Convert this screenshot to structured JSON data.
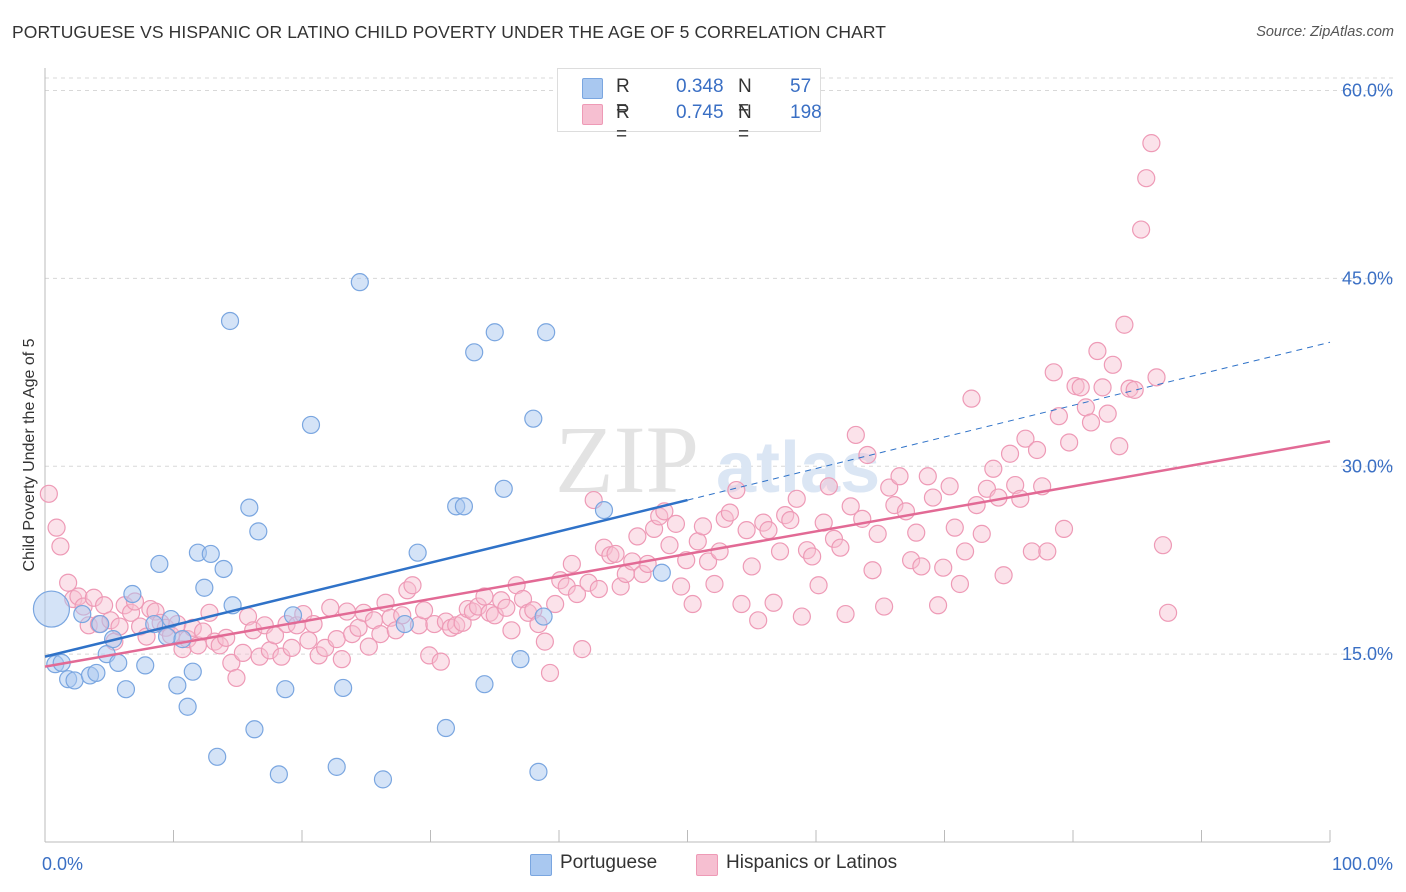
{
  "header": {
    "title": "PORTUGUESE VS HISPANIC OR LATINO CHILD POVERTY UNDER THE AGE OF 5 CORRELATION CHART",
    "source": "Source: ZipAtlas.com"
  },
  "watermark": {
    "zip": "ZIP",
    "atlas": "atlas"
  },
  "legend": {
    "portuguese": {
      "r_label": "R =",
      "r_value": "0.348",
      "n_label": "N =",
      "n_value": "57"
    },
    "hispanic": {
      "r_label": "R =",
      "r_value": "0.745",
      "n_label": "N =",
      "n_value": "198"
    }
  },
  "bottom_legend": {
    "portuguese": "Portuguese",
    "hispanic": "Hispanics or Latinos"
  },
  "colors": {
    "portuguese_fill": "#a9c8f0",
    "portuguese_stroke": "#7aa6e0",
    "portuguese_line": "#2f72c8",
    "hispanic_fill": "#f6bfd1",
    "hispanic_stroke": "#ee9ab6",
    "hispanic_line": "#e26a95",
    "axis_text": "#3a6fc4",
    "grid": "#d8d8d8"
  },
  "chart_data": {
    "type": "scatter",
    "title": "PORTUGUESE VS HISPANIC OR LATINO CHILD POVERTY UNDER THE AGE OF 5 CORRELATION CHART",
    "xlabel": "",
    "ylabel": "Child Poverty Under the Age of 5",
    "xlim": [
      0,
      100
    ],
    "ylim": [
      0,
      61
    ],
    "x_tick_labels": [
      "0.0%",
      "100.0%"
    ],
    "y_ticks": [
      15,
      30,
      45,
      60
    ],
    "y_tick_labels": [
      "15.0%",
      "30.0%",
      "45.0%",
      "60.0%"
    ],
    "grid": "horizontal dashed",
    "legend_position": "top-center",
    "series": [
      {
        "name": "Portuguese",
        "r": 0.348,
        "n": 57,
        "trend": {
          "x0": 0,
          "y0": 14.8,
          "x1": 50,
          "y1": 27.3,
          "dashed_to_x": 100,
          "dashed_to_y": 39.9
        },
        "points": [
          [
            0.5,
            18.6
          ],
          [
            0.8,
            14.2
          ],
          [
            1.3,
            14.3
          ],
          [
            1.8,
            13.0
          ],
          [
            2.3,
            12.9
          ],
          [
            2.9,
            18.2
          ],
          [
            3.5,
            13.3
          ],
          [
            4.0,
            13.5
          ],
          [
            4.3,
            17.4
          ],
          [
            4.8,
            15.0
          ],
          [
            5.3,
            16.2
          ],
          [
            5.7,
            14.3
          ],
          [
            6.3,
            12.2
          ],
          [
            6.8,
            19.8
          ],
          [
            7.8,
            14.1
          ],
          [
            8.5,
            17.4
          ],
          [
            8.9,
            22.2
          ],
          [
            9.5,
            16.4
          ],
          [
            9.8,
            17.8
          ],
          [
            10.3,
            12.5
          ],
          [
            10.7,
            16.2
          ],
          [
            11.1,
            10.8
          ],
          [
            11.5,
            13.6
          ],
          [
            11.9,
            23.1
          ],
          [
            12.4,
            20.3
          ],
          [
            12.9,
            23.0
          ],
          [
            13.4,
            6.8
          ],
          [
            13.9,
            21.8
          ],
          [
            14.4,
            41.6
          ],
          [
            14.6,
            18.9
          ],
          [
            15.9,
            26.7
          ],
          [
            16.3,
            9.0
          ],
          [
            16.6,
            24.8
          ],
          [
            18.2,
            5.4
          ],
          [
            18.7,
            12.2
          ],
          [
            19.3,
            18.1
          ],
          [
            20.7,
            33.3
          ],
          [
            22.7,
            6.0
          ],
          [
            23.2,
            12.3
          ],
          [
            24.5,
            44.7
          ],
          [
            26.3,
            5.0
          ],
          [
            28.0,
            17.4
          ],
          [
            29.0,
            23.1
          ],
          [
            31.2,
            9.1
          ],
          [
            32.0,
            26.8
          ],
          [
            32.6,
            26.8
          ],
          [
            33.4,
            39.1
          ],
          [
            34.2,
            12.6
          ],
          [
            35.0,
            40.7
          ],
          [
            35.7,
            28.2
          ],
          [
            37.0,
            14.6
          ],
          [
            38.0,
            33.8
          ],
          [
            38.4,
            5.6
          ],
          [
            38.8,
            18.0
          ],
          [
            39.0,
            40.7
          ],
          [
            43.5,
            26.5
          ],
          [
            48.0,
            21.5
          ]
        ]
      },
      {
        "name": "Hispanics or Latinos",
        "r": 0.745,
        "n": 198,
        "trend": {
          "x0": 0,
          "y0": 14.0,
          "x1": 100,
          "y1": 32.0
        },
        "points": [
          [
            0.3,
            27.8
          ],
          [
            0.9,
            25.1
          ],
          [
            1.2,
            23.6
          ],
          [
            1.8,
            20.7
          ],
          [
            2.2,
            19.4
          ],
          [
            2.6,
            19.6
          ],
          [
            3.0,
            18.8
          ],
          [
            3.4,
            17.3
          ],
          [
            3.8,
            19.5
          ],
          [
            4.2,
            17.4
          ],
          [
            4.6,
            18.9
          ],
          [
            5.1,
            17.7
          ],
          [
            5.4,
            16.0
          ],
          [
            5.8,
            17.2
          ],
          [
            6.2,
            18.9
          ],
          [
            6.7,
            18.3
          ],
          [
            7.0,
            19.2
          ],
          [
            7.4,
            17.2
          ],
          [
            7.9,
            16.4
          ],
          [
            8.2,
            18.6
          ],
          [
            8.6,
            18.4
          ],
          [
            9.0,
            17.5
          ],
          [
            9.4,
            17.1
          ],
          [
            9.8,
            16.5
          ],
          [
            10.3,
            17.4
          ],
          [
            10.7,
            15.4
          ],
          [
            11.1,
            16.2
          ],
          [
            11.5,
            17.1
          ],
          [
            11.9,
            15.7
          ],
          [
            12.3,
            16.8
          ],
          [
            12.8,
            18.3
          ],
          [
            13.2,
            16.0
          ],
          [
            13.6,
            15.7
          ],
          [
            14.1,
            16.3
          ],
          [
            14.5,
            14.3
          ],
          [
            14.9,
            13.1
          ],
          [
            15.4,
            15.1
          ],
          [
            15.8,
            18.0
          ],
          [
            16.2,
            16.9
          ],
          [
            16.7,
            14.8
          ],
          [
            17.1,
            17.3
          ],
          [
            17.5,
            15.3
          ],
          [
            17.9,
            16.5
          ],
          [
            18.4,
            14.8
          ],
          [
            18.8,
            17.4
          ],
          [
            19.2,
            15.5
          ],
          [
            19.6,
            17.3
          ],
          [
            20.1,
            18.2
          ],
          [
            20.5,
            16.1
          ],
          [
            20.9,
            17.4
          ],
          [
            21.3,
            14.9
          ],
          [
            21.8,
            15.5
          ],
          [
            22.2,
            18.7
          ],
          [
            22.7,
            16.2
          ],
          [
            23.1,
            14.6
          ],
          [
            23.5,
            18.4
          ],
          [
            23.9,
            16.6
          ],
          [
            24.4,
            17.1
          ],
          [
            24.8,
            18.3
          ],
          [
            25.2,
            15.6
          ],
          [
            25.6,
            17.7
          ],
          [
            26.1,
            16.6
          ],
          [
            26.5,
            19.1
          ],
          [
            26.9,
            17.9
          ],
          [
            27.3,
            16.9
          ],
          [
            27.8,
            18.1
          ],
          [
            28.2,
            20.1
          ],
          [
            28.6,
            20.5
          ],
          [
            29.1,
            17.3
          ],
          [
            29.5,
            18.5
          ],
          [
            29.9,
            14.9
          ],
          [
            30.3,
            17.4
          ],
          [
            30.8,
            14.4
          ],
          [
            31.2,
            17.6
          ],
          [
            31.6,
            17.1
          ],
          [
            32.0,
            17.3
          ],
          [
            32.5,
            17.5
          ],
          [
            32.9,
            18.6
          ],
          [
            33.3,
            18.4
          ],
          [
            33.7,
            18.8
          ],
          [
            34.2,
            19.6
          ],
          [
            34.6,
            18.3
          ],
          [
            35.0,
            18.1
          ],
          [
            35.5,
            19.3
          ],
          [
            35.9,
            18.7
          ],
          [
            36.3,
            16.9
          ],
          [
            36.7,
            20.5
          ],
          [
            37.2,
            19.4
          ],
          [
            37.6,
            18.3
          ],
          [
            38.0,
            18.5
          ],
          [
            38.4,
            17.4
          ],
          [
            38.9,
            16.0
          ],
          [
            39.3,
            13.5
          ],
          [
            39.7,
            19.0
          ],
          [
            40.1,
            20.9
          ],
          [
            40.6,
            20.4
          ],
          [
            41.0,
            22.2
          ],
          [
            41.4,
            19.8
          ],
          [
            41.8,
            15.4
          ],
          [
            42.3,
            20.7
          ],
          [
            42.7,
            27.3
          ],
          [
            43.1,
            20.2
          ],
          [
            43.5,
            23.5
          ],
          [
            44.0,
            22.9
          ],
          [
            44.4,
            23.0
          ],
          [
            44.8,
            20.4
          ],
          [
            45.2,
            21.4
          ],
          [
            45.7,
            22.4
          ],
          [
            46.1,
            24.4
          ],
          [
            46.5,
            21.4
          ],
          [
            46.9,
            22.2
          ],
          [
            47.4,
            25.0
          ],
          [
            47.8,
            26.0
          ],
          [
            48.2,
            26.4
          ],
          [
            48.6,
            23.7
          ],
          [
            49.1,
            25.4
          ],
          [
            49.5,
            20.4
          ],
          [
            49.9,
            22.5
          ],
          [
            50.4,
            19.0
          ],
          [
            50.8,
            24.0
          ],
          [
            51.2,
            25.2
          ],
          [
            51.6,
            22.4
          ],
          [
            52.1,
            20.6
          ],
          [
            52.5,
            23.2
          ],
          [
            52.9,
            25.8
          ],
          [
            53.3,
            26.3
          ],
          [
            53.8,
            28.1
          ],
          [
            54.2,
            19.0
          ],
          [
            54.6,
            24.9
          ],
          [
            55.0,
            22.0
          ],
          [
            55.5,
            17.7
          ],
          [
            55.9,
            25.5
          ],
          [
            56.3,
            24.9
          ],
          [
            56.7,
            19.1
          ],
          [
            57.2,
            23.2
          ],
          [
            57.6,
            26.1
          ],
          [
            58.0,
            25.7
          ],
          [
            58.5,
            27.4
          ],
          [
            58.9,
            18.0
          ],
          [
            59.3,
            23.3
          ],
          [
            59.7,
            22.8
          ],
          [
            60.2,
            20.5
          ],
          [
            60.6,
            25.5
          ],
          [
            61.0,
            28.4
          ],
          [
            61.4,
            24.2
          ],
          [
            61.9,
            23.5
          ],
          [
            62.3,
            18.2
          ],
          [
            62.7,
            26.8
          ],
          [
            63.1,
            32.5
          ],
          [
            63.6,
            25.8
          ],
          [
            64.0,
            30.9
          ],
          [
            64.4,
            21.7
          ],
          [
            64.8,
            24.6
          ],
          [
            65.3,
            18.8
          ],
          [
            65.7,
            28.3
          ],
          [
            66.1,
            26.9
          ],
          [
            66.5,
            29.2
          ],
          [
            67.0,
            26.4
          ],
          [
            67.4,
            22.5
          ],
          [
            67.8,
            24.7
          ],
          [
            68.2,
            22.0
          ],
          [
            68.7,
            29.2
          ],
          [
            69.1,
            27.5
          ],
          [
            69.5,
            18.9
          ],
          [
            69.9,
            21.9
          ],
          [
            70.4,
            28.4
          ],
          [
            70.8,
            25.1
          ],
          [
            71.2,
            20.6
          ],
          [
            71.6,
            23.2
          ],
          [
            72.1,
            35.4
          ],
          [
            72.5,
            26.9
          ],
          [
            72.9,
            24.6
          ],
          [
            73.3,
            28.2
          ],
          [
            73.8,
            29.8
          ],
          [
            74.2,
            27.5
          ],
          [
            74.6,
            21.3
          ],
          [
            75.1,
            31.0
          ],
          [
            75.5,
            28.5
          ],
          [
            75.9,
            27.4
          ],
          [
            76.3,
            32.2
          ],
          [
            76.8,
            23.2
          ],
          [
            77.2,
            31.3
          ],
          [
            77.6,
            28.4
          ],
          [
            78.0,
            23.2
          ],
          [
            78.5,
            37.5
          ],
          [
            78.9,
            34.0
          ],
          [
            79.3,
            25.0
          ],
          [
            79.7,
            31.9
          ],
          [
            80.2,
            36.4
          ],
          [
            80.6,
            36.3
          ],
          [
            81.0,
            34.7
          ],
          [
            81.4,
            33.5
          ],
          [
            81.9,
            39.2
          ],
          [
            82.3,
            36.3
          ],
          [
            82.7,
            34.2
          ],
          [
            83.1,
            38.1
          ],
          [
            83.6,
            31.6
          ],
          [
            84.0,
            41.3
          ],
          [
            84.4,
            36.2
          ],
          [
            84.8,
            36.1
          ],
          [
            85.3,
            48.9
          ],
          [
            85.7,
            53.0
          ],
          [
            86.1,
            55.8
          ],
          [
            86.5,
            37.1
          ],
          [
            87.0,
            23.7
          ],
          [
            87.4,
            18.3
          ]
        ]
      }
    ]
  }
}
